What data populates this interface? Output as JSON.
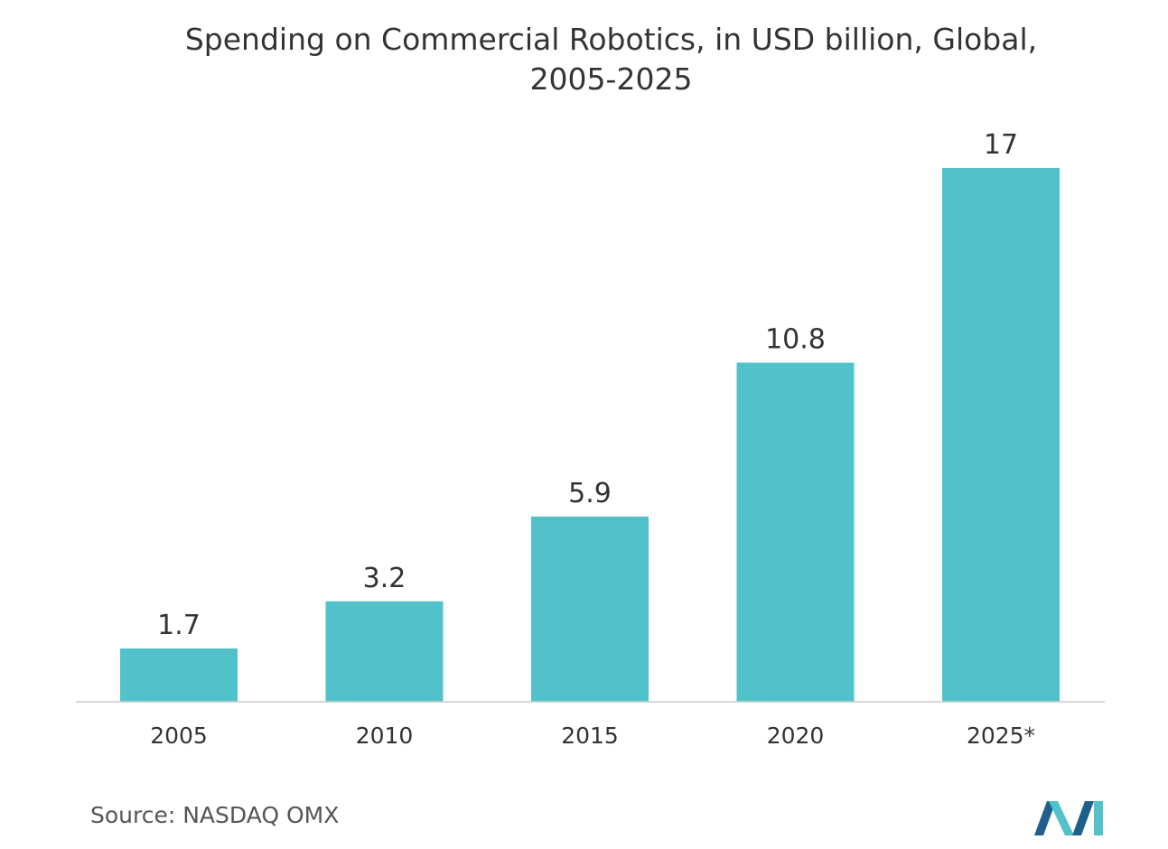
{
  "chart_data": {
    "type": "bar",
    "title_lines": [
      "Spending on Commercial Robotics, in USD billion, Global,",
      "2005-2025"
    ],
    "categories": [
      "2005",
      "2010",
      "2015",
      "2020",
      "2025*"
    ],
    "values": [
      1.7,
      3.2,
      5.9,
      10.8,
      17
    ],
    "value_labels": [
      "1.7",
      "3.2",
      "5.9",
      "10.8",
      "17"
    ],
    "xlabel": "",
    "ylabel": "",
    "ylim": [
      0,
      17
    ],
    "grid": false,
    "legend": "none",
    "bar_color": "#52c2ca",
    "axis_color": "#cccccc"
  },
  "source": "Source: NASDAQ OMX",
  "logo": {
    "icon": "mordor-intelligence-logo",
    "colors": [
      "#1f5f8b",
      "#52c2ca"
    ]
  }
}
